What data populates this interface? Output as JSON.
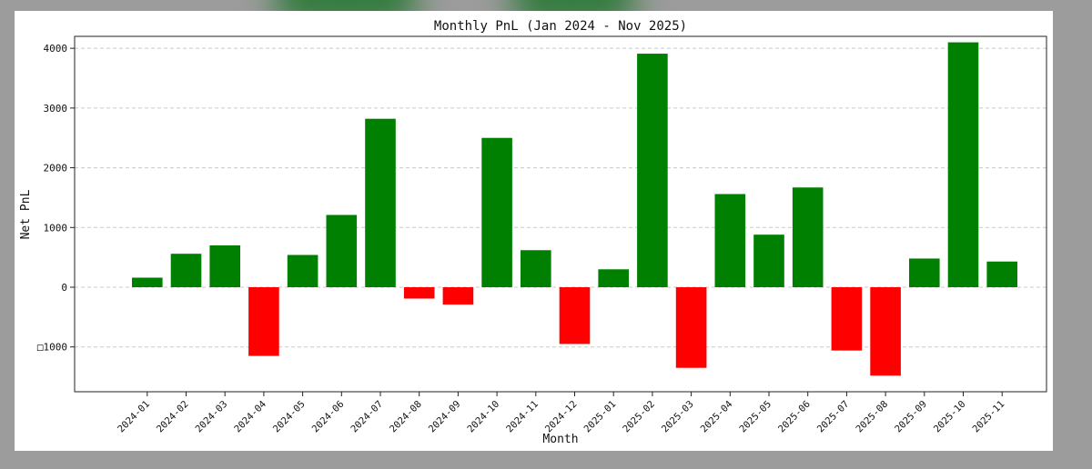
{
  "chart_data": {
    "type": "bar",
    "title": "Monthly PnL (Jan 2024 - Nov 2025)",
    "xlabel": "Month",
    "ylabel": "Net PnL",
    "ylim": [
      -1750,
      4200
    ],
    "yticks": [
      -1000,
      0,
      1000,
      2000,
      3000,
      4000
    ],
    "ytick_labels": [
      "□1000",
      "0",
      "1000",
      "2000",
      "3000",
      "4000"
    ],
    "grid": true,
    "colors": {
      "positive": "#008000",
      "negative": "#ff0000"
    },
    "categories": [
      "2024-01",
      "2024-02",
      "2024-03",
      "2024-04",
      "2024-05",
      "2024-06",
      "2024-07",
      "2024-08",
      "2024-09",
      "2024-10",
      "2024-11",
      "2024-12",
      "2025-01",
      "2025-02",
      "2025-03",
      "2025-04",
      "2025-05",
      "2025-06",
      "2025-07",
      "2025-08",
      "2025-09",
      "2025-10",
      "2025-11"
    ],
    "values": [
      160,
      560,
      700,
      -1150,
      540,
      1210,
      2820,
      -190,
      -290,
      2500,
      620,
      -950,
      300,
      3910,
      -1350,
      1560,
      880,
      1670,
      -1060,
      -1480,
      480,
      4100,
      430
    ]
  }
}
